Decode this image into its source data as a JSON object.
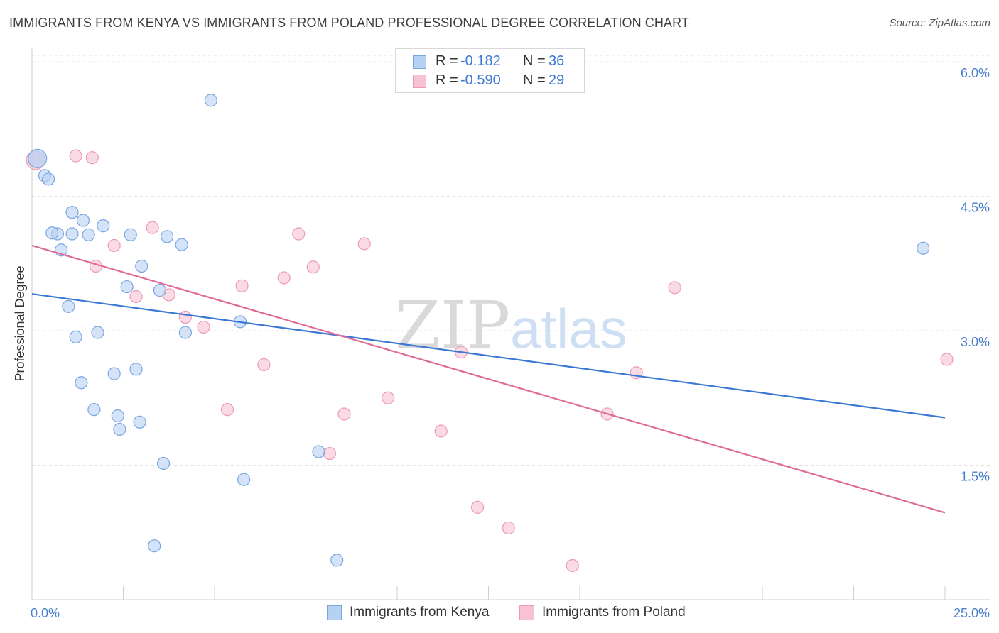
{
  "title": "IMMIGRANTS FROM KENYA VS IMMIGRANTS FROM POLAND PROFESSIONAL DEGREE CORRELATION CHART",
  "source": "Source: ZipAtlas.com",
  "watermark": {
    "zip": "ZIP",
    "atlas": "atlas"
  },
  "legend": {
    "r_label": "R =",
    "n_label": "N =",
    "kenya": {
      "r": "-0.182",
      "n": "36"
    },
    "poland": {
      "r": "-0.590",
      "n": "29"
    }
  },
  "colors": {
    "kenya_fill": "#b7d1f3",
    "kenya_stroke": "#7aa6e0",
    "kenya_line": "#3b78d4",
    "poland_fill": "#f7c3d3",
    "poland_stroke": "#ee9ab5",
    "poland_line": "#e06b97",
    "tick_text": "#4a7fcb",
    "grid": "#e3e3e3"
  },
  "chart_data": {
    "type": "scatter",
    "title": "IMMIGRANTS FROM KENYA VS IMMIGRANTS FROM POLAND PROFESSIONAL DEGREE CORRELATION CHART",
    "xlabel": "",
    "ylabel": "Professional Degree",
    "xlim": [
      0,
      25
    ],
    "ylim": [
      0,
      6.15
    ],
    "x_tick_labels": {
      "min": "0.0%",
      "max": "25.0%"
    },
    "y_ticks": [
      {
        "value": 1.5,
        "label": "1.5%"
      },
      {
        "value": 3.0,
        "label": "3.0%"
      },
      {
        "value": 4.5,
        "label": "4.5%"
      },
      {
        "value": 6.0,
        "label": "6.0%"
      }
    ],
    "series": [
      {
        "name": "Immigrants from Kenya",
        "r": -0.182,
        "n": 36,
        "trend": {
          "x0": 0,
          "y0": 3.41,
          "x1": 25,
          "y1": 2.03
        },
        "points": [
          {
            "x": 0.15,
            "y": 4.92,
            "big": true
          },
          {
            "x": 0.35,
            "y": 4.73
          },
          {
            "x": 0.45,
            "y": 4.69
          },
          {
            "x": 1.1,
            "y": 4.32
          },
          {
            "x": 1.4,
            "y": 4.23
          },
          {
            "x": 1.95,
            "y": 4.17
          },
          {
            "x": 1.1,
            "y": 4.08
          },
          {
            "x": 0.7,
            "y": 4.08
          },
          {
            "x": 0.55,
            "y": 4.09
          },
          {
            "x": 1.55,
            "y": 4.07
          },
          {
            "x": 2.7,
            "y": 4.07
          },
          {
            "x": 3.7,
            "y": 4.05
          },
          {
            "x": 4.1,
            "y": 3.96
          },
          {
            "x": 0.8,
            "y": 3.9
          },
          {
            "x": 3.0,
            "y": 3.72
          },
          {
            "x": 2.6,
            "y": 3.49
          },
          {
            "x": 3.5,
            "y": 3.45
          },
          {
            "x": 1.0,
            "y": 3.27
          },
          {
            "x": 5.7,
            "y": 3.1
          },
          {
            "x": 1.8,
            "y": 2.98
          },
          {
            "x": 4.2,
            "y": 2.98
          },
          {
            "x": 1.2,
            "y": 2.93
          },
          {
            "x": 2.85,
            "y": 2.57
          },
          {
            "x": 2.25,
            "y": 2.52
          },
          {
            "x": 1.35,
            "y": 2.42
          },
          {
            "x": 1.7,
            "y": 2.12
          },
          {
            "x": 2.35,
            "y": 2.05
          },
          {
            "x": 2.95,
            "y": 1.98
          },
          {
            "x": 2.4,
            "y": 1.9
          },
          {
            "x": 7.85,
            "y": 1.65
          },
          {
            "x": 3.6,
            "y": 1.52
          },
          {
            "x": 5.8,
            "y": 1.34
          },
          {
            "x": 3.35,
            "y": 0.6
          },
          {
            "x": 8.35,
            "y": 0.44
          },
          {
            "x": 4.9,
            "y": 5.57
          },
          {
            "x": 24.4,
            "y": 3.92
          }
        ]
      },
      {
        "name": "Immigrants from Poland",
        "r": -0.59,
        "n": 29,
        "trend": {
          "x0": 0,
          "y0": 3.95,
          "x1": 25,
          "y1": 0.97
        },
        "points": [
          {
            "x": 0.1,
            "y": 4.9,
            "big": true
          },
          {
            "x": 1.2,
            "y": 4.95
          },
          {
            "x": 1.65,
            "y": 4.93
          },
          {
            "x": 3.3,
            "y": 4.15
          },
          {
            "x": 7.3,
            "y": 4.08
          },
          {
            "x": 9.1,
            "y": 3.97
          },
          {
            "x": 2.25,
            "y": 3.95
          },
          {
            "x": 1.75,
            "y": 3.72
          },
          {
            "x": 7.7,
            "y": 3.71
          },
          {
            "x": 6.9,
            "y": 3.59
          },
          {
            "x": 5.75,
            "y": 3.5
          },
          {
            "x": 17.6,
            "y": 3.48
          },
          {
            "x": 3.75,
            "y": 3.4
          },
          {
            "x": 2.85,
            "y": 3.38
          },
          {
            "x": 4.2,
            "y": 3.15
          },
          {
            "x": 4.7,
            "y": 3.04
          },
          {
            "x": 11.75,
            "y": 2.76
          },
          {
            "x": 6.35,
            "y": 2.62
          },
          {
            "x": 16.55,
            "y": 2.53
          },
          {
            "x": 25.05,
            "y": 2.68
          },
          {
            "x": 9.75,
            "y": 2.25
          },
          {
            "x": 5.35,
            "y": 2.12
          },
          {
            "x": 8.55,
            "y": 2.07
          },
          {
            "x": 15.75,
            "y": 2.07
          },
          {
            "x": 11.2,
            "y": 1.88
          },
          {
            "x": 8.15,
            "y": 1.63
          },
          {
            "x": 12.2,
            "y": 1.03
          },
          {
            "x": 13.05,
            "y": 0.8
          },
          {
            "x": 14.8,
            "y": 0.38
          }
        ]
      }
    ]
  }
}
